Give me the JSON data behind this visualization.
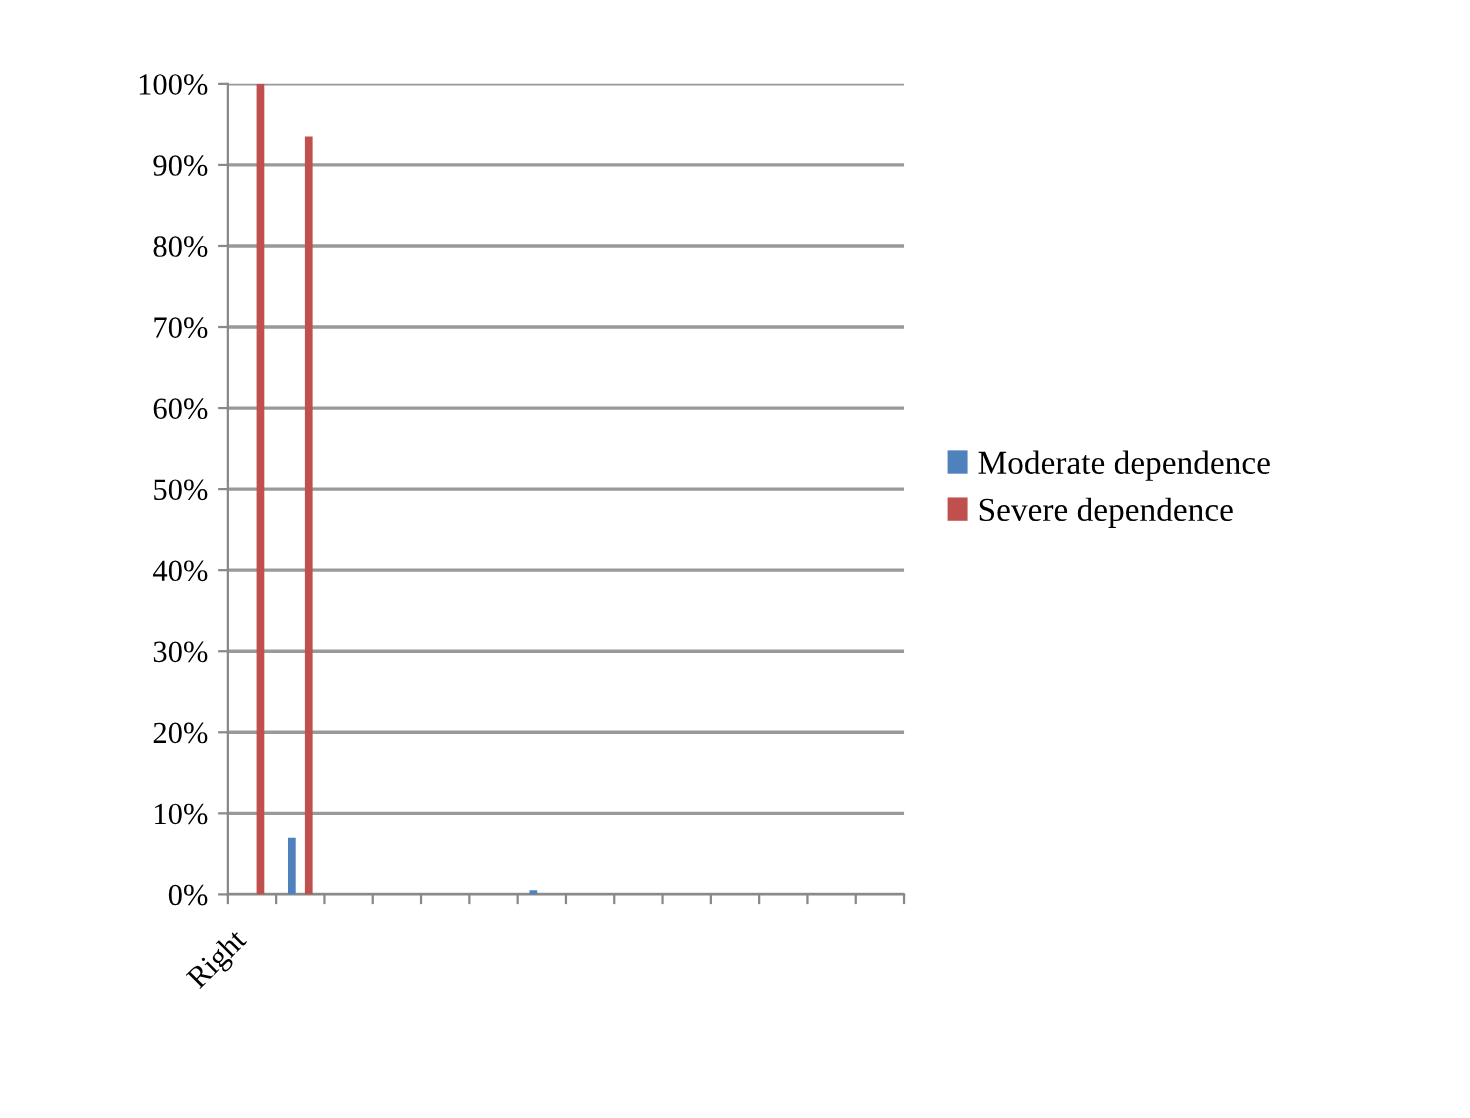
{
  "chart_data": {
    "type": "bar",
    "categories": [
      "Right",
      null,
      null,
      null,
      null,
      null,
      null,
      null,
      null,
      null,
      null,
      null,
      null,
      null
    ],
    "series": [
      {
        "name": "Moderate dependence",
        "color": "#4f81bd",
        "values": [
          0,
          7,
          0,
          0,
          0,
          0,
          0.5,
          0,
          0,
          0,
          0,
          0,
          0,
          0
        ]
      },
      {
        "name": "Severe dependence",
        "color": "#c0504d",
        "values": [
          100,
          93.5,
          0,
          0,
          0,
          0,
          0,
          0,
          0,
          0,
          0,
          0,
          0,
          0
        ]
      }
    ],
    "ylim": [
      0,
      100
    ],
    "yticks": [
      {
        "value": 0,
        "label": "0%"
      },
      {
        "value": 10,
        "label": "10%"
      },
      {
        "value": 20,
        "label": "20%"
      },
      {
        "value": 30,
        "label": "30%"
      },
      {
        "value": 40,
        "label": "40%"
      },
      {
        "value": 50,
        "label": "50%"
      },
      {
        "value": 60,
        "label": "60%"
      },
      {
        "value": 70,
        "label": "70%"
      },
      {
        "value": 80,
        "label": "80%"
      },
      {
        "value": 90,
        "label": "90%"
      },
      {
        "value": 100,
        "label": "100%"
      }
    ],
    "grid": "y",
    "legend": "right"
  }
}
